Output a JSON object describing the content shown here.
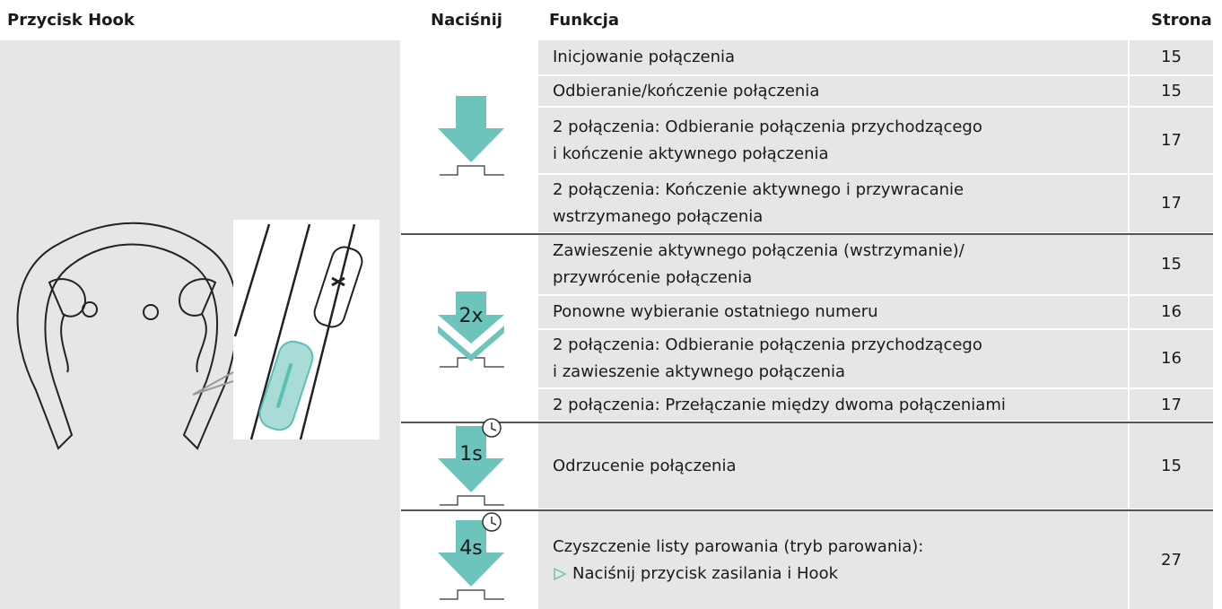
{
  "header": {
    "hook": "Przycisk Hook",
    "press": "Naciśnij",
    "function": "Funkcja",
    "page": "Strona"
  },
  "groups": [
    {
      "rows": [
        {
          "lines": [
            "Inicjowanie połączenia"
          ],
          "page": 15
        },
        {
          "lines": [
            "Odbieranie/kończenie połączenia"
          ],
          "page": 15
        },
        {
          "lines": [
            "2 połączenia: Odbieranie połączenia przychodzącego",
            "i kończenie aktywnego połączenia"
          ],
          "page": 17
        },
        {
          "lines": [
            "2 połączenia: Kończenie aktywnego i przywracanie",
            "wstrzymanego połączenia"
          ],
          "page": 17
        }
      ]
    },
    {
      "press_label": "2x",
      "rows": [
        {
          "lines": [
            "Zawieszenie aktywnego połączenia (wstrzymanie)/",
            "przywrócenie połączenia"
          ],
          "page": 15
        },
        {
          "lines": [
            "Ponowne wybieranie ostatniego numeru"
          ],
          "page": 16
        },
        {
          "lines": [
            "2 połączenia: Odbieranie połączenia przychodzącego",
            "i zawieszenie aktywnego połączenia"
          ],
          "page": 16
        },
        {
          "lines": [
            "2 połączenia: Przełączanie między dwoma połączeniami"
          ],
          "page": 17
        }
      ]
    },
    {
      "press_label": "1s",
      "rows": [
        {
          "lines": [
            "Odrzucenie połączenia"
          ],
          "page": 15
        }
      ]
    },
    {
      "press_label": "4s",
      "rows": [
        {
          "lines": [
            "Czyszczenie listy parowania (tryb parowania):"
          ],
          "step": "Naciśnij przycisk zasilania i Hook",
          "page": 27
        }
      ]
    }
  ]
}
